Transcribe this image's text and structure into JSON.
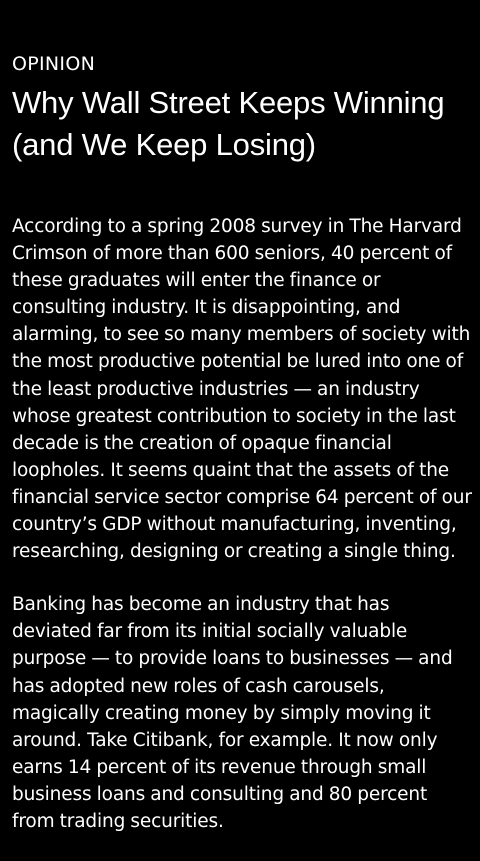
{
  "article": {
    "section": "OPINION",
    "title": "Why Wall Street Keeps Winning (and We Keep Losing)",
    "paragraphs": [
      "According to a spring 2008 survey in The Harvard Crimson of more than 600 seniors, 40 percent of these graduates will enter the finance or consulting industry. It is disappointing, and alarming, to see so many members of society with the most productive potential be lured into one of the least productive industries — an industry whose greatest contribution to society in the last decade is the creation of opaque financial loopholes. It seems quaint that the assets of the financial service sector comprise 64 percent of our country’s GDP without manufacturing, inventing, researching, designing or creating a single thing.",
      "Banking has become an industry that has deviated far from its initial socially valuable purpose — to provide loans to businesses — and has adopted new roles of cash carousels, magically creating money by simply moving it around. Take Citibank, for example. It now only earns 14 percent of its revenue through small business loans and consulting and 80 percent from trading securities."
    ]
  }
}
